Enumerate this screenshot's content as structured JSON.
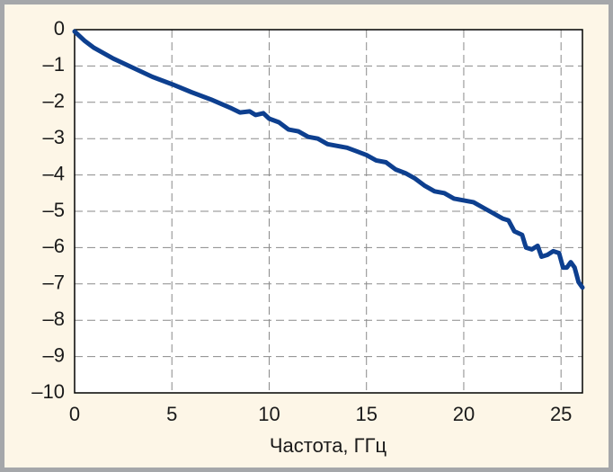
{
  "chart_data": {
    "type": "line",
    "x_label": "Частота, ГГц",
    "x": [
      0,
      0.5,
      1,
      2,
      3,
      4,
      5,
      6,
      7,
      8,
      8.5,
      9,
      9.3,
      9.7,
      10,
      10.5,
      11,
      11.5,
      12,
      12.5,
      13,
      13.5,
      14,
      14.5,
      15,
      15.5,
      16,
      16.5,
      17,
      17.5,
      18,
      18.5,
      19,
      19.5,
      20,
      20.5,
      21,
      21.5,
      22,
      22.3,
      22.6,
      23,
      23.2,
      23.5,
      23.8,
      24,
      24.3,
      24.6,
      24.9,
      25.1,
      25.3,
      25.5,
      25.7,
      25.9,
      26.1
    ],
    "values": [
      -0.05,
      -0.3,
      -0.5,
      -0.8,
      -1.05,
      -1.3,
      -1.5,
      -1.72,
      -1.92,
      -2.15,
      -2.28,
      -2.25,
      -2.35,
      -2.3,
      -2.45,
      -2.55,
      -2.75,
      -2.8,
      -2.95,
      -3.0,
      -3.15,
      -3.2,
      -3.25,
      -3.35,
      -3.45,
      -3.6,
      -3.65,
      -3.85,
      -3.95,
      -4.1,
      -4.3,
      -4.45,
      -4.5,
      -4.65,
      -4.7,
      -4.75,
      -4.9,
      -5.05,
      -5.2,
      -5.25,
      -5.55,
      -5.65,
      -6.0,
      -6.05,
      -5.95,
      -6.25,
      -6.2,
      -6.1,
      -6.15,
      -6.55,
      -6.55,
      -6.4,
      -6.55,
      -6.95,
      -7.1
    ],
    "color": "#0d3f8f",
    "xlim": [
      0,
      26.1
    ],
    "ylim": [
      -10,
      0
    ],
    "xticks": [
      0,
      5,
      10,
      15,
      20,
      25
    ],
    "yticks": [
      0,
      {
        "value": -1,
        "label": "–1"
      },
      {
        "value": -2,
        "label": "–2"
      },
      {
        "value": -3,
        "label": "–3"
      },
      {
        "value": -4,
        "label": "–4"
      },
      {
        "value": -5,
        "label": "–5"
      },
      {
        "value": -6,
        "label": "–6"
      },
      {
        "value": -7,
        "label": "–7"
      },
      {
        "value": -8,
        "label": "–8"
      },
      {
        "value": -9,
        "label": "–9"
      },
      {
        "value": -10,
        "label": "–10"
      }
    ],
    "grid": true
  }
}
